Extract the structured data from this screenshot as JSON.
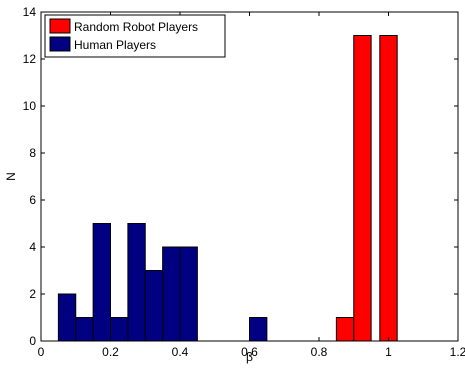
{
  "chart_data": {
    "type": "bar",
    "xlabel": "β",
    "ylabel": "N",
    "xlim": [
      0,
      1.2
    ],
    "ylim": [
      0,
      14
    ],
    "xticks": [
      0,
      0.2,
      0.4,
      0.6,
      0.8,
      1,
      1.2
    ],
    "xtick_labels": [
      "0",
      "0.2",
      "0.4",
      "0.6",
      "0.8",
      "1",
      "1.2"
    ],
    "yticks": [
      0,
      2,
      4,
      6,
      8,
      10,
      12,
      14
    ],
    "ytick_labels": [
      "0",
      "2",
      "4",
      "6",
      "8",
      "10",
      "12",
      "14"
    ],
    "bin_width": 0.05,
    "grid": false,
    "legend_position": "top-left",
    "series": [
      {
        "name": "Random Robot Players",
        "color": "#ff0000",
        "bins": [
          {
            "x": 0.875,
            "value": 1
          },
          {
            "x": 0.925,
            "value": 13
          },
          {
            "x": 1.0,
            "value": 13
          }
        ]
      },
      {
        "name": "Human Players",
        "color": "#000080",
        "bins": [
          {
            "x": 0.075,
            "value": 2
          },
          {
            "x": 0.125,
            "value": 1
          },
          {
            "x": 0.175,
            "value": 5
          },
          {
            "x": 0.225,
            "value": 1
          },
          {
            "x": 0.275,
            "value": 5
          },
          {
            "x": 0.325,
            "value": 3
          },
          {
            "x": 0.375,
            "value": 4
          },
          {
            "x": 0.425,
            "value": 4
          },
          {
            "x": 0.625,
            "value": 1
          }
        ]
      }
    ]
  }
}
